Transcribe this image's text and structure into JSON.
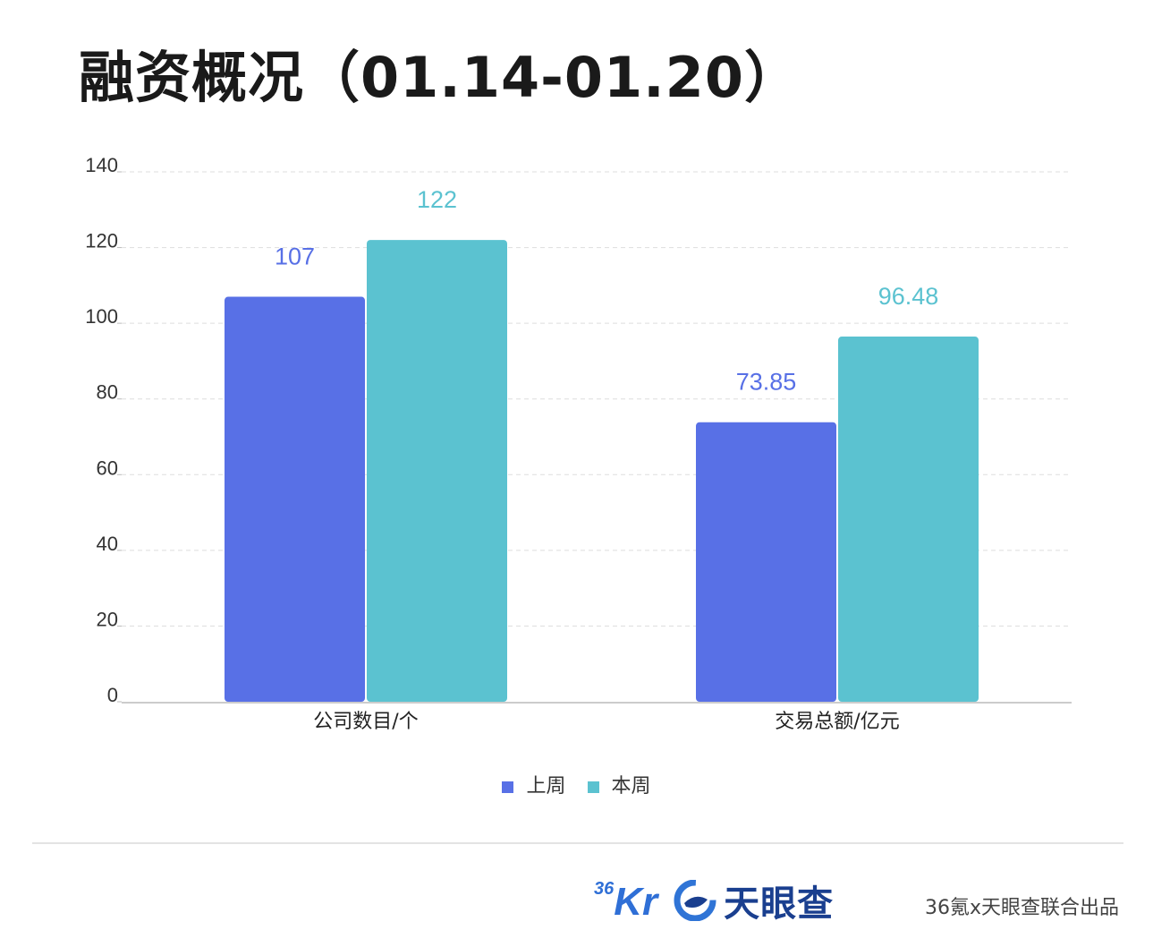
{
  "title": "融资概况（01.14-01.20）",
  "colors": {
    "last_week": "#5870e6",
    "this_week": "#5bc2d0"
  },
  "chart_data": {
    "type": "bar",
    "categories": [
      "公司数目/个",
      "交易总额/亿元"
    ],
    "series": [
      {
        "name": "上周",
        "values": [
          107,
          73.85
        ],
        "value_labels": [
          "107",
          "73.85"
        ]
      },
      {
        "name": "本周",
        "values": [
          122,
          96.48
        ],
        "value_labels": [
          "122",
          "96.48"
        ]
      }
    ],
    "ylim": [
      0,
      140
    ],
    "yticks": [
      "0",
      "20",
      "40",
      "60",
      "80",
      "100",
      "120",
      "140"
    ],
    "grid": true,
    "legend_position": "bottom"
  },
  "footer": {
    "logo_36kr_num": "36",
    "logo_36kr_text": "Kr",
    "logo_tianyancha": "天眼查",
    "credit": "36氪x天眼查联合出品"
  }
}
